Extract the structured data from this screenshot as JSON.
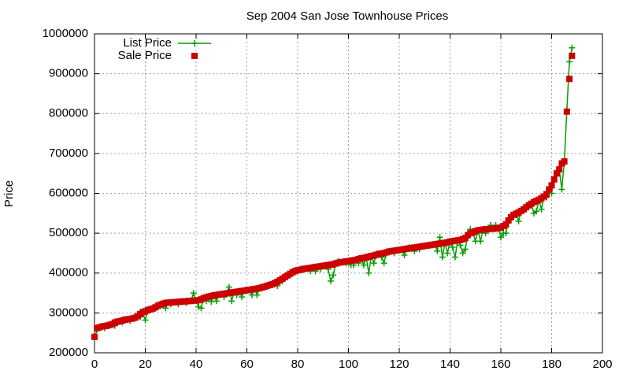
{
  "chart_data": {
    "type": "line",
    "title": "Sep 2004 San Jose Townhouse Prices",
    "ylabel": "Price",
    "x": [
      0,
      1,
      2,
      3,
      4,
      5,
      6,
      7,
      8,
      9,
      10,
      11,
      12,
      13,
      14,
      15,
      16,
      17,
      18,
      19,
      20,
      21,
      22,
      23,
      24,
      25,
      26,
      27,
      28,
      29,
      30,
      31,
      32,
      33,
      34,
      35,
      36,
      37,
      38,
      39,
      40,
      41,
      42,
      43,
      44,
      45,
      46,
      47,
      48,
      49,
      50,
      51,
      52,
      53,
      54,
      55,
      56,
      57,
      58,
      59,
      60,
      61,
      62,
      63,
      64,
      65,
      66,
      67,
      68,
      69,
      70,
      71,
      72,
      73,
      74,
      75,
      76,
      77,
      78,
      79,
      80,
      81,
      82,
      83,
      84,
      85,
      86,
      87,
      88,
      89,
      90,
      91,
      92,
      93,
      94,
      95,
      96,
      97,
      98,
      99,
      100,
      101,
      102,
      103,
      104,
      105,
      106,
      107,
      108,
      109,
      110,
      111,
      112,
      113,
      114,
      115,
      116,
      117,
      118,
      119,
      120,
      121,
      122,
      123,
      124,
      125,
      126,
      127,
      128,
      129,
      130,
      131,
      132,
      133,
      134,
      135,
      136,
      137,
      138,
      139,
      140,
      141,
      142,
      143,
      144,
      145,
      146,
      147,
      148,
      149,
      150,
      151,
      152,
      153,
      154,
      155,
      156,
      157,
      158,
      159,
      160,
      161,
      162,
      163,
      164,
      165,
      166,
      167,
      168,
      169,
      170,
      171,
      172,
      173,
      174,
      175,
      176,
      177,
      178,
      179,
      180,
      181,
      182,
      183,
      184,
      185,
      186,
      187,
      188
    ],
    "series": [
      {
        "name": "List Price",
        "color": "#00a000",
        "style": "linespoints",
        "values": [
          235000,
          258000,
          262000,
          266000,
          262000,
          268000,
          270000,
          272000,
          268000,
          278000,
          279000,
          276000,
          283000,
          284000,
          280000,
          286000,
          288000,
          292000,
          290000,
          300000,
          282000,
          305000,
          309000,
          311000,
          314000,
          318000,
          321000,
          323000,
          312000,
          326000,
          322000,
          327000,
          327000,
          322000,
          328000,
          329000,
          325000,
          330000,
          330000,
          350000,
          331000,
          315000,
          312000,
          337000,
          330000,
          341000,
          328000,
          344000,
          330000,
          346000,
          347000,
          340000,
          349000,
          365000,
          330000,
          352000,
          345000,
          354000,
          340000,
          356000,
          357000,
          358000,
          345000,
          360000,
          345000,
          362000,
          364000,
          366000,
          368000,
          370000,
          372000,
          375000,
          368000,
          382000,
          380000,
          390000,
          394000,
          398000,
          402000,
          405000,
          407000,
          408000,
          410000,
          411000,
          412000,
          405000,
          414000,
          405000,
          416000,
          410000,
          418000,
          419000,
          410000,
          380000,
          395000,
          424000,
          430000,
          427000,
          428000,
          425000,
          430000,
          420000,
          420000,
          433000,
          425000,
          437000,
          420000,
          439000,
          400000,
          443000,
          425000,
          446000,
          448000,
          440000,
          425000,
          452000,
          454000,
          455000,
          450000,
          457000,
          458000,
          459000,
          445000,
          461000,
          465000,
          463000,
          455000,
          465000,
          460000,
          467000,
          468000,
          469000,
          470000,
          471000,
          472000,
          455000,
          490000,
          440000,
          476000,
          450000,
          479000,
          465000,
          440000,
          482000,
          470000,
          450000,
          460000,
          495000,
          510000,
          502000,
          480000,
          507000,
          480000,
          509000,
          500000,
          510000,
          520000,
          511000,
          520000,
          513000,
          490000,
          500000,
          500000,
          532000,
          540000,
          546000,
          549000,
          530000,
          556000,
          560000,
          565000,
          570000,
          574000,
          550000,
          555000,
          584000,
          560000,
          592000,
          590000,
          610000,
          600000,
          640000,
          650000,
          660000,
          610000,
          680000,
          810000,
          930000,
          965000
        ]
      },
      {
        "name": "Sale Price",
        "color": "#cc0000",
        "style": "points",
        "values": [
          240000,
          262000,
          264000,
          266000,
          267000,
          268000,
          270000,
          272000,
          276000,
          278000,
          279000,
          281000,
          283000,
          284000,
          285000,
          286000,
          288000,
          292000,
          297000,
          302000,
          304000,
          307000,
          309000,
          311000,
          314000,
          318000,
          321000,
          323000,
          325000,
          326000,
          326000,
          327000,
          327000,
          328000,
          328000,
          329000,
          329000,
          330000,
          330000,
          331000,
          331000,
          332000,
          334000,
          337000,
          339000,
          341000,
          342000,
          344000,
          345000,
          346000,
          347000,
          348000,
          349000,
          350000,
          351000,
          352000,
          353000,
          354000,
          355000,
          356000,
          357000,
          358000,
          359000,
          360000,
          361000,
          362000,
          364000,
          366000,
          368000,
          370000,
          372000,
          375000,
          378000,
          382000,
          386000,
          390000,
          394000,
          398000,
          402000,
          405000,
          407000,
          408000,
          410000,
          411000,
          412000,
          413000,
          414000,
          415000,
          416000,
          417000,
          418000,
          419000,
          420000,
          421000,
          422000,
          424000,
          426000,
          427000,
          428000,
          429000,
          430000,
          431000,
          432000,
          433000,
          435000,
          437000,
          438000,
          439000,
          441000,
          443000,
          444000,
          446000,
          448000,
          449000,
          450000,
          452000,
          454000,
          455000,
          456000,
          457000,
          458000,
          459000,
          460000,
          461000,
          462000,
          463000,
          464000,
          465000,
          466000,
          467000,
          468000,
          469000,
          470000,
          471000,
          472000,
          473000,
          474000,
          475000,
          476000,
          477000,
          479000,
          480000,
          481000,
          482000,
          483000,
          485000,
          488000,
          495000,
          500000,
          502000,
          505000,
          507000,
          508000,
          509000,
          510000,
          510000,
          511000,
          511000,
          512000,
          513000,
          514000,
          518000,
          522000,
          532000,
          540000,
          546000,
          549000,
          552000,
          556000,
          560000,
          565000,
          570000,
          574000,
          578000,
          581000,
          584000,
          588000,
          592000,
          598000,
          610000,
          620000,
          635000,
          650000,
          660000,
          675000,
          680000,
          805000,
          887000,
          945000
        ]
      }
    ],
    "xlim": [
      0,
      200
    ],
    "xticks": [
      0,
      20,
      40,
      60,
      80,
      100,
      120,
      140,
      160,
      180,
      200
    ],
    "ylim": [
      200000,
      1000000
    ],
    "yticks": [
      200000,
      300000,
      400000,
      500000,
      600000,
      700000,
      800000,
      900000,
      1000000
    ],
    "grid": true,
    "legend": "top-left"
  }
}
